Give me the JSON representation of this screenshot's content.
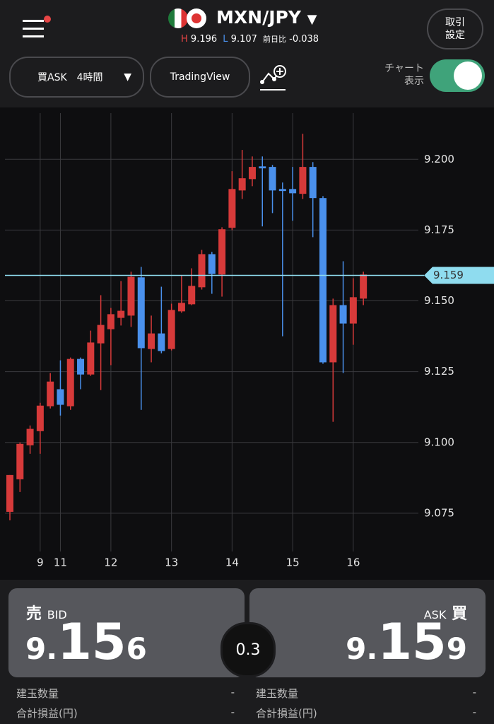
{
  "header": {
    "pair": "MXN/JPY",
    "high_label": "H",
    "high": "9.196",
    "low_label": "L",
    "low": "9.107",
    "change_label": "前日比",
    "change": "-0.038",
    "settings": [
      "取引",
      "設定"
    ]
  },
  "controls": {
    "order_type": "買ASK　4時間",
    "tradingview": "TradingView",
    "chart_toggle": [
      "チャート",
      "表示"
    ]
  },
  "chart_data": {
    "type": "candlestick",
    "categories": [
      null,
      null,
      null,
      "9",
      null,
      "11",
      null,
      null,
      null,
      null,
      "12",
      null,
      null,
      null,
      null,
      null,
      "13",
      null,
      null,
      null,
      null,
      null,
      "14",
      null,
      null,
      null,
      null,
      null,
      "15",
      null,
      null,
      null,
      null,
      null,
      "16",
      null
    ],
    "open": [
      9.0755,
      9.087,
      9.099,
      9.104,
      9.1128,
      9.1188,
      9.1128,
      9.1295,
      9.124,
      9.135,
      9.14,
      9.144,
      9.1448,
      9.1583,
      9.133,
      9.1385,
      9.133,
      9.1463,
      9.1488,
      9.1548,
      9.1665,
      9.1593,
      9.1758,
      9.189,
      9.193,
      9.1975,
      9.1973,
      9.1895,
      9.1895,
      9.1878,
      9.1973,
      9.1863,
      9.1283,
      9.1485,
      9.142,
      9.1508
    ],
    "high": [
      9.0885,
      9.1,
      9.106,
      9.114,
      9.1245,
      9.129,
      9.13,
      9.13,
      9.1395,
      9.152,
      9.1475,
      9.157,
      9.1603,
      9.162,
      9.1448,
      9.155,
      9.149,
      9.159,
      9.1615,
      9.168,
      9.1673,
      9.176,
      9.1958,
      9.2033,
      9.201,
      9.201,
      9.198,
      9.1918,
      9.1973,
      9.209,
      9.199,
      9.187,
      9.1508,
      9.164,
      9.158,
      9.1603
    ],
    "low": [
      9.0725,
      9.0825,
      9.096,
      9.096,
      9.112,
      9.1095,
      9.1115,
      9.1188,
      9.1235,
      9.1185,
      9.1273,
      9.1413,
      9.1408,
      9.1115,
      9.1283,
      9.1315,
      9.1325,
      9.1458,
      9.1485,
      9.154,
      9.1525,
      9.1515,
      9.175,
      9.186,
      9.1905,
      9.1763,
      9.181,
      9.1375,
      9.1783,
      9.186,
      9.1725,
      9.1278,
      9.1073,
      9.1245,
      9.1345,
      9.1485
    ],
    "close": [
      9.0885,
      9.0995,
      9.1048,
      9.113,
      9.1215,
      9.1133,
      9.1295,
      9.124,
      9.1353,
      9.1415,
      9.1453,
      9.1465,
      9.1585,
      9.1333,
      9.1385,
      9.1323,
      9.1468,
      9.1493,
      9.1553,
      9.1665,
      9.1595,
      9.1753,
      9.1895,
      9.1933,
      9.1973,
      9.1968,
      9.189,
      9.1888,
      9.188,
      9.1973,
      9.1863,
      9.1283,
      9.1485,
      9.142,
      9.1513,
      9.1593
    ],
    "up_color": "#d73a3a",
    "down_color": "#4a90ec",
    "current_price": 9.159,
    "current_color": "#8fdcef",
    "ylim": [
      9.0615,
      9.2183
    ],
    "yticks": [
      {
        "value": 9.075,
        "label": "9.075"
      },
      {
        "value": 9.1,
        "label": "9.100"
      },
      {
        "value": 9.125,
        "label": "9.125"
      },
      {
        "value": 9.15,
        "label": "9.150"
      },
      {
        "value": 9.175,
        "label": "9.175"
      },
      {
        "value": 9.2,
        "label": "9.200"
      }
    ],
    "grid": true
  },
  "quote": {
    "bid_label": "売",
    "bid_text": "BID",
    "bid_parts": [
      "9.",
      "15",
      "6"
    ],
    "spread": "0.3",
    "ask_text": "ASK",
    "ask_label": "買",
    "ask_parts": [
      "9.",
      "15",
      "9"
    ]
  },
  "positions": {
    "left": [
      {
        "label": "建玉数量",
        "value": "-"
      },
      {
        "label": "合計損益(円)",
        "value": "-"
      }
    ],
    "right": [
      {
        "label": "建玉数量",
        "value": "-"
      },
      {
        "label": "合計損益(円)",
        "value": "-"
      }
    ]
  }
}
